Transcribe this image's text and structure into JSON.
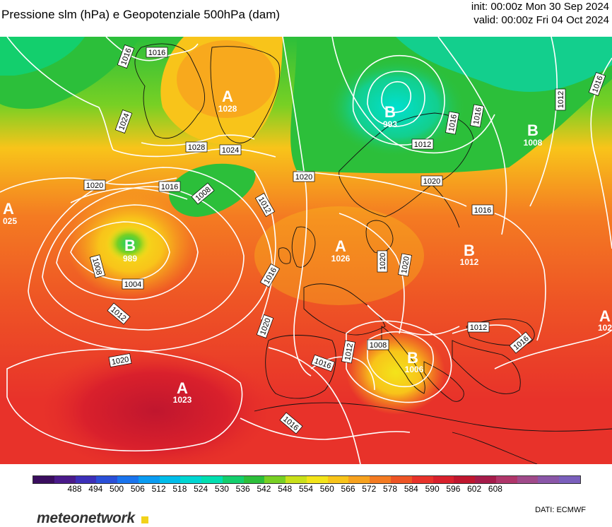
{
  "header": {
    "title": "Pressione slm (hPa) e Geopotenziale 500hPa (dam)",
    "init": "init: 00:00z Mon 30 Sep 2024",
    "valid": "valid: 00:00z Fri 04 Oct 2024"
  },
  "legend": {
    "ticks": [
      "488",
      "494",
      "500",
      "506",
      "512",
      "518",
      "524",
      "530",
      "536",
      "542",
      "548",
      "554",
      "560",
      "566",
      "572",
      "578",
      "584",
      "590",
      "596",
      "602",
      "608"
    ],
    "colors": [
      "#3a0d5e",
      "#4a1a8a",
      "#3c2fb8",
      "#2a4fd8",
      "#1a74ee",
      "#0a9cf2",
      "#00bdea",
      "#00d6d2",
      "#00dfb0",
      "#13cf6d",
      "#2cbf3a",
      "#78d024",
      "#c9e01a",
      "#f3e41a",
      "#f8c41a",
      "#f7a21e",
      "#f47b22",
      "#ee5425",
      "#e8322a",
      "#d9202c",
      "#c0162e",
      "#a61b4a",
      "#b0356a",
      "#a04a8a",
      "#8a56a8",
      "#7a5fbc"
    ]
  },
  "isobars": [
    {
      "value": "1016",
      "pos": "top-center"
    },
    {
      "value": "1016",
      "pos": "greenland-w"
    },
    {
      "value": "1024",
      "pos": "greenland-w2"
    },
    {
      "value": "1028",
      "pos": "greenland-s"
    },
    {
      "value": "1024",
      "pos": "greenland-se"
    },
    {
      "value": "1020",
      "pos": "atlantic-n"
    },
    {
      "value": "1016",
      "pos": "atlantic-n2"
    },
    {
      "value": "1008",
      "pos": "atlantic-low"
    },
    {
      "value": "1012",
      "pos": "atlantic-e"
    },
    {
      "value": "1020",
      "pos": "north-sea"
    },
    {
      "value": "1012",
      "pos": "scandinavia"
    },
    {
      "value": "1016",
      "pos": "scandinavia-e"
    },
    {
      "value": "1016",
      "pos": "finland"
    },
    {
      "value": "1012",
      "pos": "russia"
    },
    {
      "value": "1016",
      "pos": "far-east"
    },
    {
      "value": "1020",
      "pos": "baltic"
    },
    {
      "value": "1016",
      "pos": "russia-s"
    },
    {
      "value": "1008",
      "pos": "low-w"
    },
    {
      "value": "1004",
      "pos": "low-w2"
    },
    {
      "value": "1012",
      "pos": "low-w3"
    },
    {
      "value": "1016",
      "pos": "biscay"
    },
    {
      "value": "1020",
      "pos": "france"
    },
    {
      "value": "1020",
      "pos": "germany"
    },
    {
      "value": "1020",
      "pos": "poland"
    },
    {
      "value": "1012",
      "pos": "balkans"
    },
    {
      "value": "1016",
      "pos": "black-sea"
    },
    {
      "value": "1012",
      "pos": "italy-w"
    },
    {
      "value": "1008",
      "pos": "italy"
    },
    {
      "value": "1016",
      "pos": "iberia"
    },
    {
      "value": "1020",
      "pos": "azores"
    },
    {
      "value": "1016",
      "pos": "morocco"
    }
  ],
  "centers": [
    {
      "letter": "A",
      "value": "1028",
      "pos": "greenland"
    },
    {
      "letter": "B",
      "value": "993",
      "pos": "norway"
    },
    {
      "letter": "B",
      "value": "1008",
      "pos": "russia"
    },
    {
      "letter": "A",
      "value": "025",
      "pos": "west-edge"
    },
    {
      "letter": "B",
      "value": "989",
      "pos": "atlantic"
    },
    {
      "letter": "A",
      "value": "1026",
      "pos": "north-sea"
    },
    {
      "letter": "B",
      "value": "1012",
      "pos": "belarus"
    },
    {
      "letter": "A",
      "value": "1023",
      "pos": "azores"
    },
    {
      "letter": "B",
      "value": "1006",
      "pos": "italy"
    },
    {
      "letter": "A",
      "value": "102",
      "pos": "east-edge"
    }
  ],
  "branding": {
    "name": "meteonetwork",
    "credit": "DATI:  ECMWF"
  }
}
